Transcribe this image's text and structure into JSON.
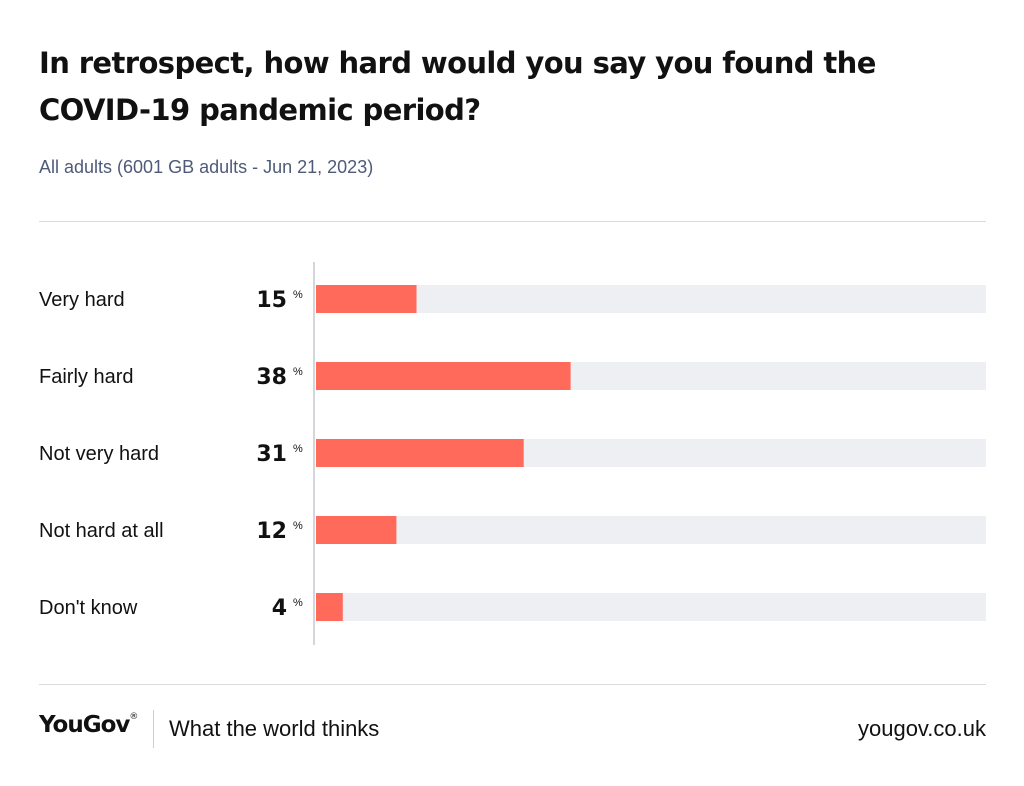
{
  "header": {
    "title": "In retrospect, how hard would you say you found the COVID-19 pandemic period?",
    "subtitle": "All adults (6001 GB adults - Jun 21, 2023)"
  },
  "colors": {
    "bar": "#ff6a5a",
    "track": "#eeeff3",
    "axis": "#d5d5dc"
  },
  "chart_data": {
    "type": "bar",
    "orientation": "horizontal",
    "categories": [
      "Very hard",
      "Fairly hard",
      "Not very hard",
      "Not hard at all",
      "Don't know"
    ],
    "values": [
      15,
      38,
      31,
      12,
      4
    ],
    "unit": "%",
    "xlim": [
      0,
      100
    ],
    "grid": false
  },
  "footer": {
    "logo": "YouGov",
    "logo_mark": "®",
    "tagline": "What the world thinks",
    "url": "yougov.co.uk"
  }
}
